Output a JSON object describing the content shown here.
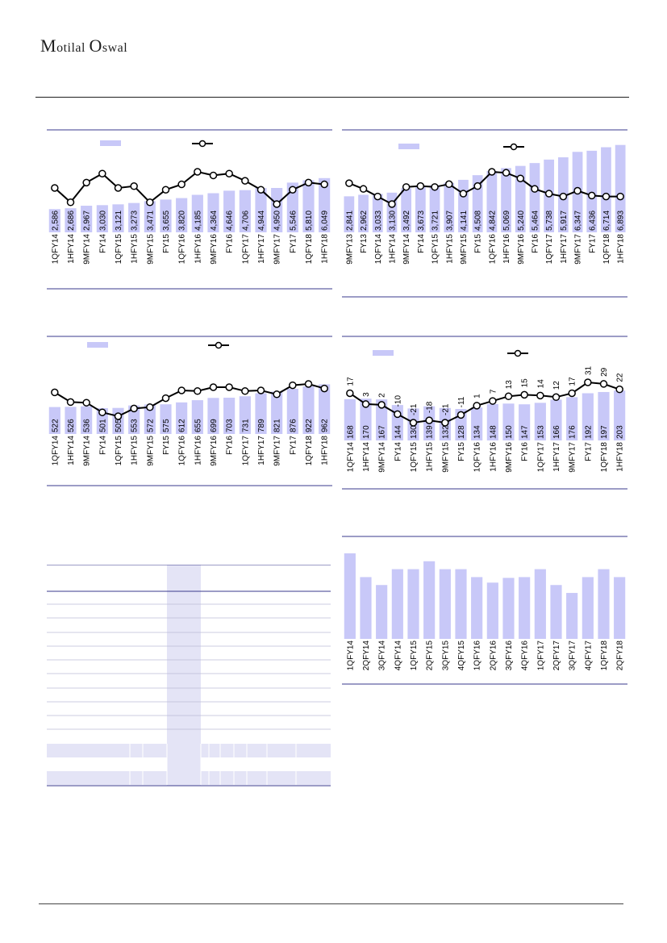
{
  "header": {
    "logo_part1": "M",
    "logo_part2": "otilal ",
    "logo_part3": "O",
    "logo_part4": "swal"
  },
  "colors": {
    "bar": "#c8c8f8",
    "line": "#000000",
    "rule": "#3a3a8c",
    "highlight": "#e4e4f6"
  },
  "chart_data": [
    {
      "type": "bar",
      "categories": [
        "1QFY14",
        "1HFY14",
        "9MFY14",
        "FY14",
        "1QFY15",
        "1HFY15",
        "9MFY15",
        "FY15",
        "1QFY16",
        "1HFY16",
        "9MFY16",
        "FY16",
        "1QFY17",
        "1HFY17",
        "9MFY17",
        "FY17",
        "1QFY18",
        "1HFY18"
      ],
      "values": [
        2586,
        2686,
        2967,
        3030,
        3121,
        3273,
        3471,
        3655,
        3820,
        4185,
        4364,
        4646,
        4706,
        4944,
        4950,
        5546,
        5810,
        6049
      ],
      "labels": [
        "2,586",
        "2,686",
        "2,967",
        "3,030",
        "3,121",
        "3,273",
        "3,471",
        "3,655",
        "3,820",
        "4,185",
        "4,364",
        "4,646",
        "4,706",
        "4,944",
        "4,950",
        "5,546",
        "5,810",
        "6,049"
      ],
      "line_values": [
        30,
        22,
        33,
        38,
        30,
        31,
        22,
        29,
        32,
        39,
        37,
        38,
        34,
        29,
        21,
        29,
        33,
        32
      ],
      "ylim": [
        0,
        6300
      ],
      "line_ylim": [
        -110,
        100
      ]
    },
    {
      "type": "bar",
      "categories": [
        "9MFY13",
        "FY13",
        "1QFY14",
        "1HFY14",
        "9MFY14",
        "FY14",
        "1QFY15",
        "1HFY15",
        "9MFY15",
        "FY15",
        "1QFY16",
        "1HFY16",
        "9MFY16",
        "FY16",
        "1QFY17",
        "1HFY17",
        "9MFY17",
        "FY17",
        "1QFY18",
        "1HFY18"
      ],
      "values": [
        2841,
        2962,
        3033,
        3130,
        3492,
        3673,
        3721,
        3907,
        4141,
        4508,
        4842,
        5069,
        5240,
        5464,
        5738,
        5917,
        6347,
        6436,
        6714,
        6893
      ],
      "labels": [
        "2,841",
        "2,962",
        "3,033",
        "3,130",
        "3,492",
        "3,673",
        "3,721",
        "3,907",
        "4,141",
        "4,508",
        "4,842",
        "5,069",
        "5,240",
        "5,464",
        "5,738",
        "5,917",
        "6,347",
        "6,436",
        "6,714",
        "6,893"
      ],
      "line_values": [
        44,
        38,
        30,
        22,
        40,
        41,
        40,
        43,
        33,
        41,
        56,
        55,
        49,
        38,
        33,
        30,
        36,
        31,
        30,
        30
      ],
      "ylim": [
        0,
        7000
      ],
      "line_ylim": [
        -120,
        120
      ]
    },
    {
      "type": "bar",
      "categories": [
        "1QFY14",
        "1HFY14",
        "9MFY14",
        "FY14",
        "1QFY15",
        "1HFY15",
        "9MFY15",
        "FY15",
        "1QFY16",
        "1HFY16",
        "9MFY16",
        "FY16",
        "1QFY17",
        "1HFY17",
        "9MFY17",
        "FY17",
        "1QFY18",
        "1HFY18"
      ],
      "values": [
        522,
        526,
        536,
        501,
        505,
        553,
        572,
        575,
        612,
        655,
        699,
        703,
        731,
        789,
        821,
        876,
        922,
        962
      ],
      "labels": [
        "522",
        "526",
        "536",
        "501",
        "505",
        "553",
        "572",
        "575",
        "612",
        "655",
        "699",
        "703",
        "731",
        "789",
        "821",
        "876",
        "922",
        "962"
      ],
      "line_values": [
        35,
        20,
        19,
        4,
        -2,
        10,
        12,
        26,
        38,
        37,
        43,
        43,
        37,
        38,
        32,
        46,
        48,
        41
      ],
      "ylim": [
        0,
        1000
      ],
      "line_ylim": [
        -60,
        110
      ]
    },
    {
      "type": "bar",
      "categories": [
        "1QFY14",
        "1HFY14",
        "9MFY14",
        "FY14",
        "1QFY15",
        "1HFY15",
        "9MFY15",
        "FY15",
        "1QFY16",
        "1HFY16",
        "9MFY16",
        "FY16",
        "1QFY17",
        "1HFY17",
        "9MFY17",
        "FY17",
        "1QFY18",
        "1HFY18"
      ],
      "values": [
        168,
        170,
        167,
        144,
        130,
        139,
        132,
        128,
        134,
        148,
        150,
        147,
        153,
        166,
        176,
        192,
        197,
        203
      ],
      "labels": [
        "168",
        "170",
        "167",
        "144",
        "130",
        "139",
        "132",
        "128",
        "134",
        "148",
        "150",
        "147",
        "153",
        "166",
        "176",
        "192",
        "197",
        "203"
      ],
      "line_values": [
        17,
        3,
        2,
        -10,
        -21,
        -18,
        -21,
        -11,
        1,
        7,
        13,
        15,
        14,
        12,
        17,
        31,
        29,
        22
      ],
      "line_labels": [
        "17",
        "3",
        "2",
        "-10",
        "-21",
        "-18",
        "-21",
        "-11",
        "1",
        "7",
        "13",
        "15",
        "14",
        "12",
        "17",
        "31",
        "29",
        "22"
      ],
      "ylim": [
        0,
        210
      ],
      "line_ylim": [
        -55,
        60
      ]
    },
    {
      "type": "bar",
      "categories": [
        "1QFY14",
        "2QFY14",
        "3QFY14",
        "4QFY14",
        "1QFY15",
        "2QFY15",
        "3QFY15",
        "4QFY15",
        "1QFY16",
        "2QFY16",
        "3QFY16",
        "4QFY16",
        "1QFY17",
        "2QFY17",
        "3QFY17",
        "4QFY17",
        "1QFY18",
        "2QFY18"
      ],
      "values": [
        108,
        78,
        68,
        88,
        88,
        98,
        88,
        88,
        78,
        71,
        77,
        78,
        88,
        68,
        58,
        78,
        88,
        78
      ],
      "ylim": [
        0,
        112
      ]
    }
  ],
  "table": {
    "columns": 10
  }
}
